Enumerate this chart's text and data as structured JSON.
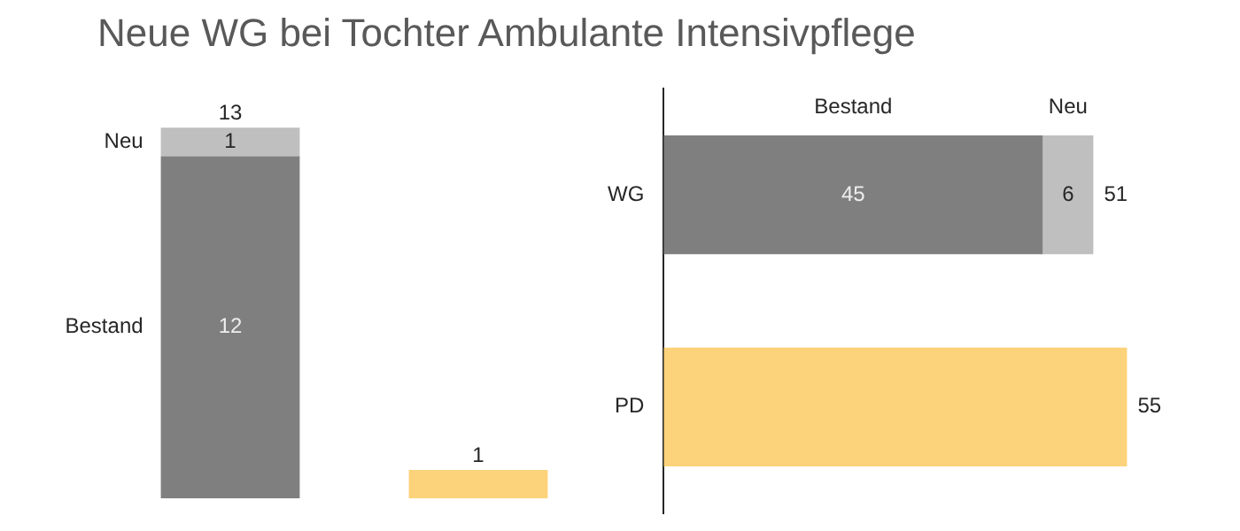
{
  "chart_data": [
    {
      "type": "bar",
      "title": "Neue WG bei Tochter Ambulante Intensivpflege",
      "stacked": true,
      "categories": [
        null,
        null
      ],
      "series": [
        {
          "name": "Bestand",
          "colors": [
            "#7f7f7f",
            "#fcd27a"
          ],
          "values": [
            12,
            1
          ],
          "value_labels": [
            "12",
            null
          ]
        },
        {
          "name": "Neu",
          "color": "#bfbfbf",
          "values": [
            1,
            null
          ],
          "value_labels": [
            "1",
            null
          ]
        }
      ],
      "totals": [
        "13",
        "1"
      ]
    },
    {
      "type": "bar",
      "orientation": "horizontal",
      "stacked": true,
      "categories": [
        "WG",
        "PD"
      ],
      "series": [
        {
          "name": "Bestand",
          "colors": [
            "#7f7f7f",
            "#fcd27a"
          ],
          "values": [
            45,
            55
          ],
          "value_labels": [
            "45",
            null
          ]
        },
        {
          "name": "Neu",
          "color": "#bfbfbf",
          "values": [
            6,
            null
          ],
          "value_labels": [
            "6",
            null
          ]
        }
      ],
      "totals": [
        "51",
        "55"
      ]
    }
  ]
}
